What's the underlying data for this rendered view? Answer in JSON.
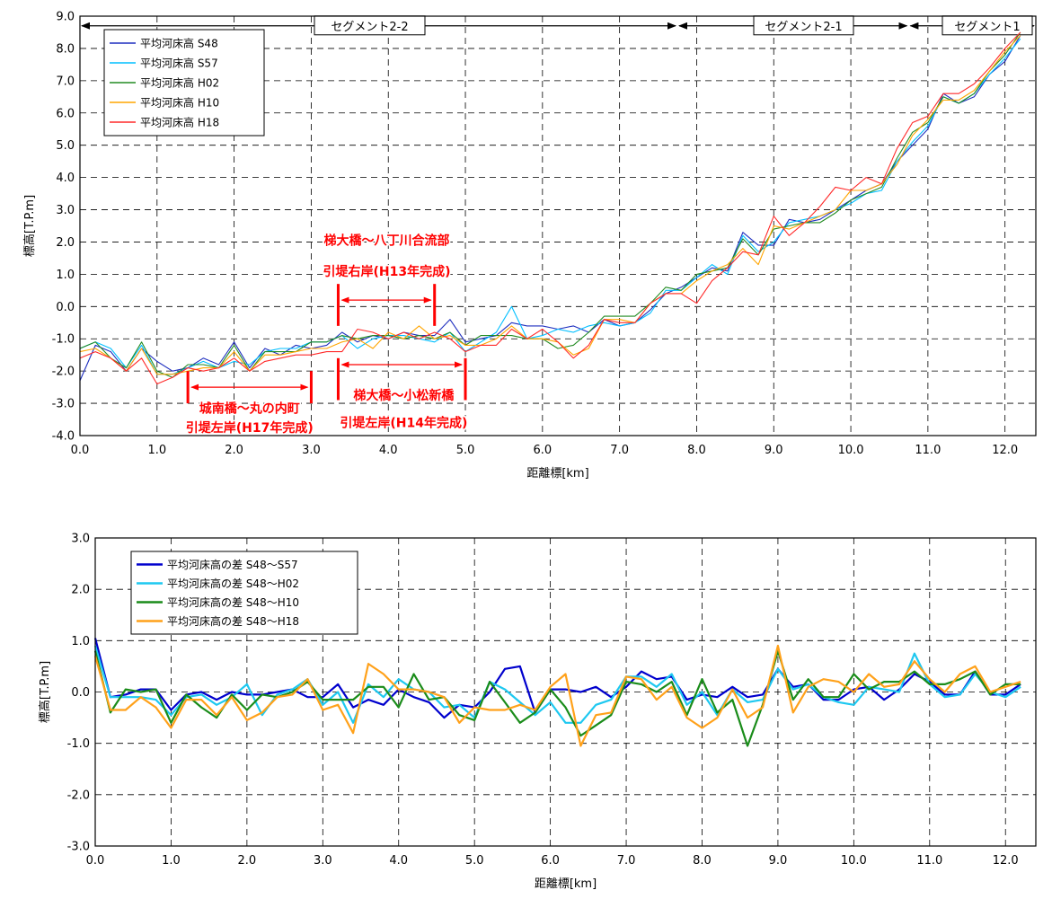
{
  "chart_data": [
    {
      "type": "line",
      "xlabel": "距離標[km]",
      "ylabel": "標高[T.P.m]",
      "xlim": [
        0,
        12.4
      ],
      "ylim": [
        -4,
        9
      ],
      "xticks": [
        "0.0",
        "1.0",
        "2.0",
        "3.0",
        "4.0",
        "5.0",
        "6.0",
        "7.0",
        "8.0",
        "9.0",
        "10.0",
        "11.0",
        "12.0"
      ],
      "yticks": [
        "-4.0",
        "-3.0",
        "-2.0",
        "-1.0",
        "0.0",
        "1.0",
        "2.0",
        "3.0",
        "4.0",
        "5.0",
        "6.0",
        "7.0",
        "8.0",
        "9.0"
      ],
      "grid": true,
      "legend_position": "top-left",
      "x": [
        0.0,
        0.2,
        0.4,
        0.6,
        0.8,
        1.0,
        1.2,
        1.4,
        1.6,
        1.8,
        2.0,
        2.2,
        2.4,
        2.6,
        2.8,
        3.0,
        3.2,
        3.4,
        3.6,
        3.8,
        4.0,
        4.2,
        4.4,
        4.6,
        4.8,
        5.0,
        5.2,
        5.4,
        5.6,
        5.8,
        6.0,
        6.2,
        6.4,
        6.6,
        6.8,
        7.0,
        7.2,
        7.4,
        7.6,
        7.8,
        8.0,
        8.2,
        8.4,
        8.6,
        8.8,
        9.0,
        9.2,
        9.4,
        9.6,
        9.8,
        10.0,
        10.2,
        10.4,
        10.6,
        10.8,
        11.0,
        11.2,
        11.4,
        11.6,
        11.8,
        12.0,
        12.2
      ],
      "series": [
        {
          "name": "平均河床高 S48",
          "color": "#1f2fbf",
          "values": [
            -2.3,
            -1.2,
            -1.4,
            -2.0,
            -1.3,
            -1.7,
            -2.0,
            -1.9,
            -1.6,
            -1.8,
            -1.1,
            -1.9,
            -1.3,
            -1.5,
            -1.2,
            -1.3,
            -1.2,
            -0.8,
            -1.1,
            -0.9,
            -1.0,
            -0.8,
            -0.9,
            -0.9,
            -0.4,
            -1.1,
            -1.0,
            -0.9,
            -0.5,
            -0.6,
            -0.6,
            -0.7,
            -0.6,
            -0.8,
            -0.4,
            -0.6,
            -0.5,
            -0.1,
            0.4,
            0.6,
            0.9,
            1.2,
            1.1,
            2.3,
            1.9,
            1.9,
            2.7,
            2.6,
            2.7,
            3.0,
            3.3,
            3.6,
            3.8,
            4.5,
            5.0,
            5.5,
            6.6,
            6.3,
            6.5,
            7.2,
            7.6,
            8.4
          ]
        },
        {
          "name": "平均河床高 S57",
          "color": "#00bfff",
          "values": [
            -1.3,
            -1.1,
            -1.3,
            -1.9,
            -1.2,
            -2.1,
            -2.1,
            -1.9,
            -1.7,
            -1.9,
            -1.7,
            -1.8,
            -1.4,
            -1.3,
            -1.3,
            -1.1,
            -1.1,
            -0.9,
            -1.3,
            -1.0,
            -0.9,
            -0.9,
            -1.0,
            -1.1,
            -0.8,
            -1.4,
            -1.1,
            -0.8,
            0.0,
            -1.0,
            -0.9,
            -0.7,
            -0.8,
            -0.6,
            -0.5,
            -0.6,
            -0.5,
            -0.2,
            0.5,
            0.5,
            0.9,
            1.3,
            1.0,
            2.2,
            1.7,
            2.0,
            2.6,
            2.7,
            2.8,
            3.0,
            3.2,
            3.5,
            3.6,
            4.5,
            5.1,
            5.6,
            6.5,
            6.3,
            6.6,
            7.2,
            7.7,
            8.3
          ]
        },
        {
          "name": "平均河床高 H02",
          "color": "#228b22",
          "values": [
            -1.3,
            -1.1,
            -1.6,
            -1.9,
            -1.1,
            -2.0,
            -2.2,
            -1.8,
            -1.8,
            -1.9,
            -1.2,
            -2.0,
            -1.4,
            -1.4,
            -1.4,
            -1.1,
            -1.1,
            -0.9,
            -1.0,
            -0.9,
            -0.9,
            -1.0,
            -0.9,
            -1.0,
            -0.8,
            -1.2,
            -0.9,
            -0.9,
            -0.9,
            -1.0,
            -1.0,
            -1.3,
            -1.2,
            -0.8,
            -0.3,
            -0.3,
            -0.3,
            0.1,
            0.6,
            0.5,
            1.0,
            1.1,
            1.2,
            2.1,
            1.6,
            2.4,
            2.5,
            2.6,
            2.6,
            2.9,
            3.3,
            3.5,
            3.7,
            4.6,
            5.4,
            5.7,
            6.5,
            6.3,
            6.6,
            7.3,
            7.8,
            8.5
          ]
        },
        {
          "name": "平均河床高 H10",
          "color": "#ffa500",
          "values": [
            -1.4,
            -1.3,
            -1.6,
            -2.0,
            -1.3,
            -2.1,
            -2.1,
            -2.0,
            -1.9,
            -1.9,
            -1.4,
            -2.0,
            -1.5,
            -1.5,
            -1.4,
            -1.3,
            -1.3,
            -1.1,
            -1.0,
            -1.3,
            -0.8,
            -1.0,
            -0.6,
            -1.0,
            -0.9,
            -1.2,
            -1.2,
            -1.0,
            -0.6,
            -1.0,
            -1.0,
            -1.1,
            -1.5,
            -1.3,
            -0.4,
            -0.4,
            -0.5,
            0.1,
            0.4,
            0.4,
            0.8,
            1.1,
            1.3,
            1.8,
            1.3,
            2.5,
            2.4,
            2.6,
            2.8,
            3.0,
            3.6,
            3.6,
            3.8,
            4.4,
            5.3,
            5.8,
            6.4,
            6.4,
            6.7,
            7.3,
            7.9,
            8.4
          ]
        },
        {
          "name": "平均河床高 H18",
          "color": "#ff2a2a",
          "values": [
            -1.6,
            -1.4,
            -1.6,
            -2.0,
            -1.6,
            -2.4,
            -2.2,
            -1.9,
            -2.0,
            -1.9,
            -1.6,
            -2.0,
            -1.7,
            -1.6,
            -1.5,
            -1.5,
            -1.4,
            -1.4,
            -0.7,
            -0.8,
            -1.0,
            -0.8,
            -1.0,
            -0.8,
            -1.0,
            -1.4,
            -1.2,
            -1.2,
            -0.7,
            -1.0,
            -0.7,
            -1.1,
            -1.6,
            -1.2,
            -0.4,
            -0.5,
            -0.5,
            0.1,
            0.4,
            0.4,
            0.1,
            0.8,
            1.2,
            1.7,
            1.6,
            2.8,
            2.2,
            2.6,
            3.1,
            3.7,
            3.6,
            4.0,
            3.8,
            4.9,
            5.7,
            5.9,
            6.6,
            6.6,
            6.9,
            7.4,
            8.0,
            8.5
          ]
        }
      ],
      "segments": [
        {
          "label": "セグメント2-2",
          "from": 0.0,
          "to": 7.75
        },
        {
          "label": "セグメント2-1",
          "from": 7.75,
          "to": 10.75
        },
        {
          "label": "セグメント1",
          "from": 10.75,
          "to": 12.4
        }
      ],
      "annotations": [
        {
          "line1": "城南橋～丸の内町",
          "line2": "引堤左岸(H17年完成)",
          "from": 1.4,
          "to": 3.0,
          "arrow_y": -2.5,
          "marker_low": -3.0,
          "marker_high": -2.0,
          "text_x": 2.2,
          "text_y1": -3.15,
          "text_y2": -3.75
        },
        {
          "line1": "梯大橋～八丁川合流部",
          "line2": "引堤右岸(H13年完成)",
          "from": 3.35,
          "to": 4.6,
          "arrow_y": 0.2,
          "marker_low": -0.6,
          "marker_high": 0.7,
          "text_x": 3.98,
          "text_y1": 2.05,
          "text_y2": 1.1
        },
        {
          "line1": "梯大橋～小松新橋",
          "line2": "引堤左岸(H14年完成)",
          "from": 3.35,
          "to": 5.0,
          "arrow_y": -1.8,
          "marker_low": -2.9,
          "marker_high": -1.6,
          "text_x": 4.2,
          "text_y1": -2.75,
          "text_y2": -3.6
        }
      ]
    },
    {
      "type": "line",
      "xlabel": "距離標[km]",
      "ylabel": "標高[T.P.m]",
      "xlim": [
        0,
        12.4
      ],
      "ylim": [
        -3,
        3
      ],
      "xticks": [
        "0.0",
        "1.0",
        "2.0",
        "3.0",
        "4.0",
        "5.0",
        "6.0",
        "7.0",
        "8.0",
        "9.0",
        "10.0",
        "11.0",
        "12.0"
      ],
      "yticks": [
        "-3.0",
        "-2.0",
        "-1.0",
        "0.0",
        "1.0",
        "2.0",
        "3.0"
      ],
      "grid": true,
      "legend_position": "top-left",
      "x": [
        0.0,
        0.2,
        0.4,
        0.6,
        0.8,
        1.0,
        1.2,
        1.4,
        1.6,
        1.8,
        2.0,
        2.2,
        2.4,
        2.6,
        2.8,
        3.0,
        3.2,
        3.4,
        3.6,
        3.8,
        4.0,
        4.2,
        4.4,
        4.6,
        4.8,
        5.0,
        5.2,
        5.4,
        5.6,
        5.8,
        6.0,
        6.2,
        6.4,
        6.6,
        6.8,
        7.0,
        7.2,
        7.4,
        7.6,
        7.8,
        8.0,
        8.2,
        8.4,
        8.6,
        8.8,
        9.0,
        9.2,
        9.4,
        9.6,
        9.8,
        10.0,
        10.2,
        10.4,
        10.6,
        10.8,
        11.0,
        11.2,
        11.4,
        11.6,
        11.8,
        12.0,
        12.2
      ],
      "series": [
        {
          "name": "平均河床高の差 S48～S57",
          "color": "#0000cd",
          "values": [
            1.05,
            -0.1,
            -0.05,
            0.05,
            0.05,
            -0.35,
            -0.05,
            0.0,
            -0.15,
            0.0,
            -0.05,
            -0.05,
            0.0,
            0.05,
            -0.1,
            -0.1,
            0.15,
            -0.3,
            -0.15,
            -0.25,
            0.05,
            -0.1,
            -0.2,
            -0.5,
            -0.25,
            -0.3,
            0.0,
            0.45,
            0.5,
            -0.4,
            0.05,
            0.05,
            0.0,
            0.1,
            -0.1,
            0.1,
            0.4,
            0.25,
            0.3,
            -0.15,
            -0.05,
            -0.1,
            0.1,
            -0.1,
            -0.05,
            0.45,
            0.1,
            0.15,
            -0.15,
            -0.15,
            0.05,
            0.1,
            -0.15,
            0.05,
            0.35,
            0.2,
            -0.05,
            -0.05,
            0.4,
            -0.05,
            -0.05,
            0.15
          ]
        },
        {
          "name": "平均河床高の差 S48～H02",
          "color": "#1ec8f0",
          "values": [
            0.9,
            -0.1,
            -0.1,
            -0.1,
            -0.15,
            -0.45,
            -0.1,
            -0.05,
            -0.25,
            -0.1,
            0.15,
            -0.45,
            -0.05,
            0.05,
            0.25,
            -0.25,
            0.0,
            -0.6,
            0.15,
            -0.1,
            0.25,
            0.05,
            0.0,
            -0.3,
            -0.25,
            -0.5,
            0.2,
            0.05,
            -0.2,
            -0.45,
            -0.2,
            -0.6,
            -0.6,
            -0.25,
            -0.15,
            0.3,
            0.3,
            0.1,
            0.35,
            -0.25,
            0.0,
            -0.45,
            0.05,
            -0.2,
            -0.15,
            0.45,
            0.05,
            0.15,
            -0.1,
            -0.2,
            -0.25,
            0.1,
            0.05,
            0.0,
            0.75,
            0.15,
            -0.1,
            -0.05,
            0.35,
            0.0,
            -0.1,
            0.1
          ]
        },
        {
          "name": "平均河床高の差 S48～H10",
          "color": "#1a8c1a",
          "values": [
            0.8,
            -0.4,
            0.05,
            0.0,
            0.05,
            -0.6,
            -0.05,
            -0.3,
            -0.5,
            -0.05,
            -0.35,
            -0.05,
            -0.1,
            0.0,
            0.2,
            -0.15,
            -0.15,
            -0.15,
            0.1,
            0.1,
            -0.3,
            0.35,
            -0.15,
            -0.1,
            -0.45,
            -0.55,
            0.2,
            -0.2,
            -0.6,
            -0.4,
            0.05,
            -0.3,
            -0.85,
            -0.65,
            -0.45,
            0.2,
            0.15,
            0.0,
            0.2,
            -0.45,
            0.25,
            -0.4,
            -0.15,
            -1.05,
            -0.25,
            0.8,
            -0.15,
            0.25,
            -0.1,
            -0.1,
            0.35,
            0.05,
            0.2,
            0.2,
            0.4,
            0.15,
            0.15,
            0.25,
            0.4,
            -0.05,
            0.15,
            0.15
          ]
        },
        {
          "name": "平均河床高の差 S48～H18",
          "color": "#ffa11a",
          "values": [
            0.7,
            -0.35,
            -0.35,
            -0.1,
            -0.3,
            -0.7,
            -0.15,
            -0.15,
            -0.45,
            -0.1,
            -0.55,
            -0.4,
            -0.1,
            -0.05,
            0.25,
            -0.35,
            -0.25,
            -0.8,
            0.55,
            0.35,
            0.05,
            0.05,
            0.0,
            -0.1,
            -0.6,
            -0.3,
            -0.35,
            -0.35,
            -0.25,
            -0.35,
            0.1,
            0.35,
            -1.05,
            -0.45,
            -0.4,
            0.3,
            0.25,
            -0.15,
            0.1,
            -0.5,
            -0.7,
            -0.5,
            0.05,
            -0.5,
            -0.3,
            0.9,
            -0.4,
            0.1,
            0.25,
            0.2,
            0.0,
            0.35,
            0.1,
            0.15,
            0.6,
            0.25,
            0.0,
            0.35,
            0.5,
            0.0,
            0.1,
            0.2
          ]
        }
      ]
    }
  ]
}
